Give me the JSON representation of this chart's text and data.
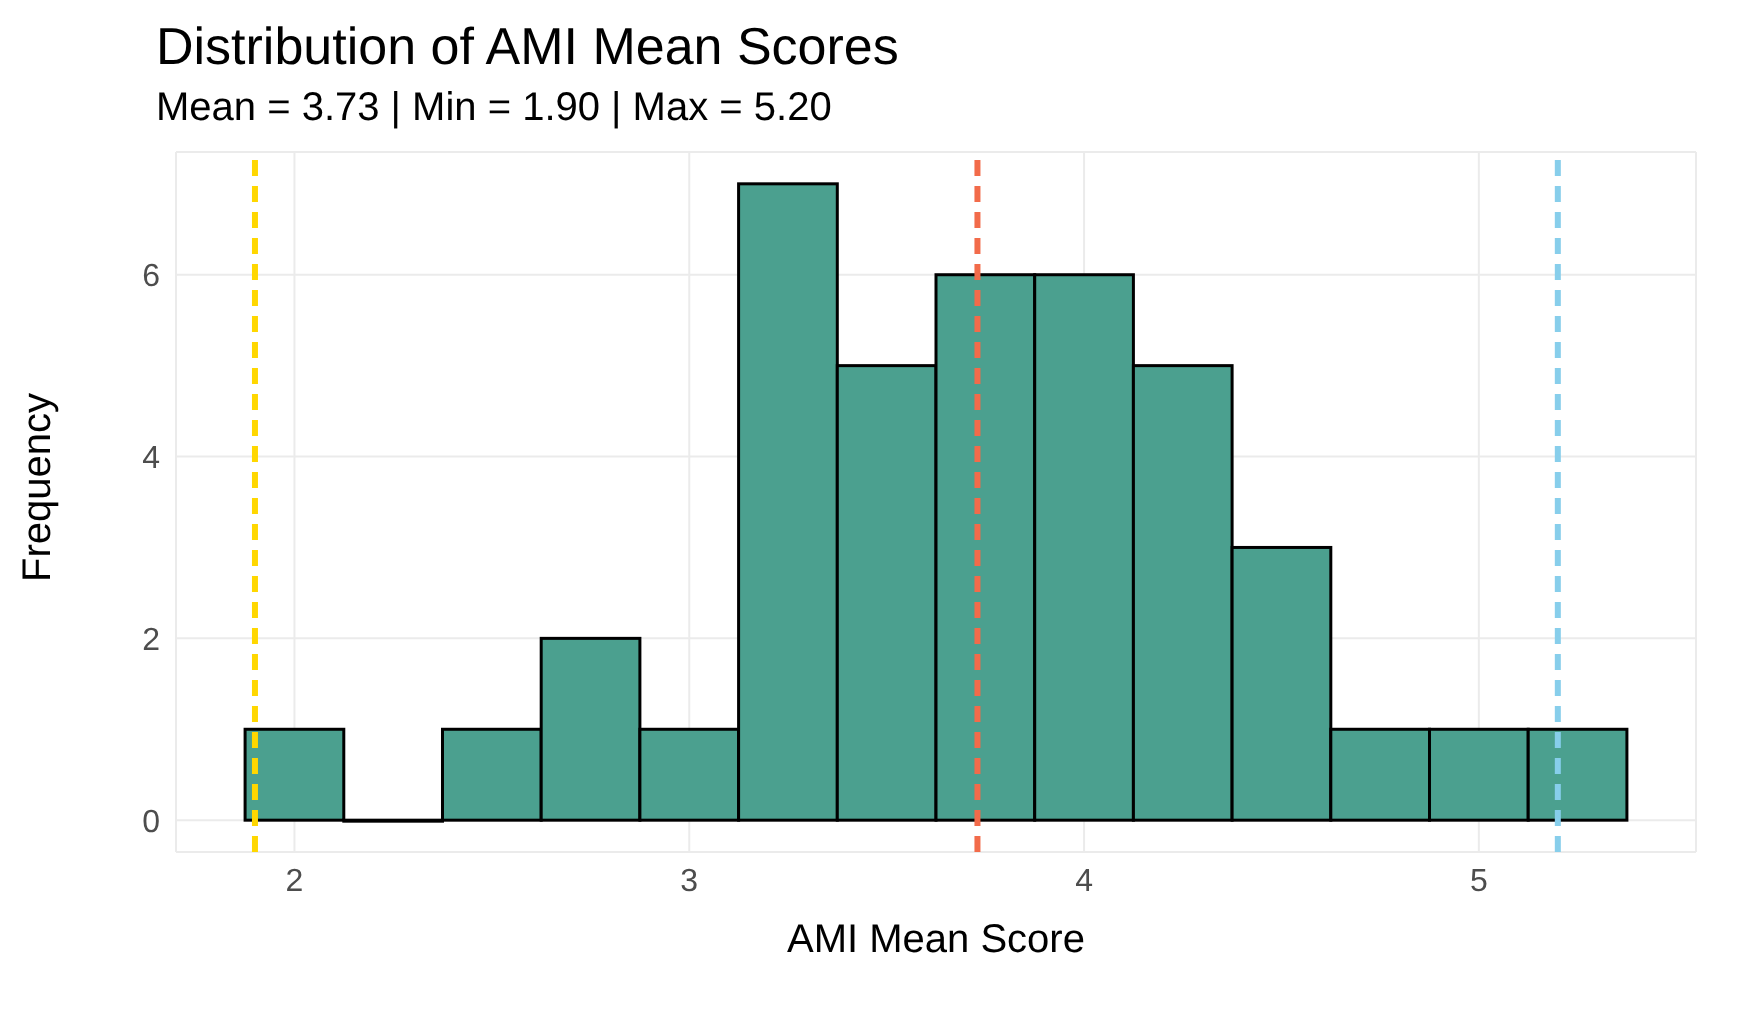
{
  "chart_data": {
    "type": "histogram",
    "title": "Distribution of AMI Mean Scores",
    "subtitle": "Mean = 3.73 | Min = 1.90 | Max = 5.20",
    "xlabel": "AMI Mean Score",
    "ylabel": "Frequency",
    "bins": [
      1.875,
      2.125,
      2.375,
      2.625,
      2.875,
      3.125,
      3.375,
      3.625,
      3.875,
      4.125,
      4.375,
      4.625,
      4.875,
      5.125,
      5.375
    ],
    "values": [
      1,
      0,
      1,
      2,
      1,
      7,
      5,
      6,
      6,
      5,
      3,
      1,
      1,
      1
    ],
    "color": "#4ba08f",
    "xlim": [
      1.7,
      5.55
    ],
    "xticks": [
      2,
      3,
      4,
      5
    ],
    "ylim": [
      -0.35,
      7.35
    ],
    "yticks": [
      0,
      2,
      4,
      6
    ],
    "grid": true,
    "ref_lines": [
      {
        "axis": "x",
        "value": 1.9,
        "color": "#ffd700",
        "line_style": "dashed"
      },
      {
        "axis": "x",
        "value": 3.73,
        "color": "#f26b4a",
        "line_style": "dashed"
      },
      {
        "axis": "x",
        "value": 5.2,
        "color": "#87ceeb",
        "line_style": "dashed"
      }
    ]
  }
}
